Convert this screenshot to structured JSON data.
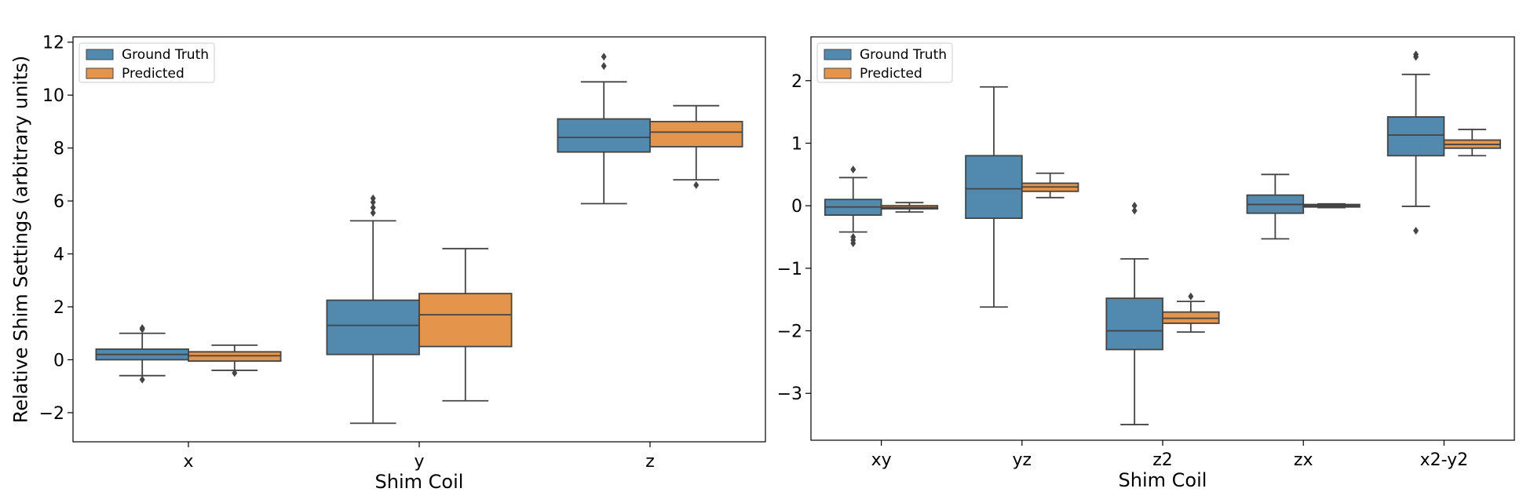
{
  "colors": {
    "ground_truth": "#3274a1",
    "predicted": "#e1812c",
    "whisker": "#444444"
  },
  "chart_data": [
    {
      "type": "box",
      "title": "",
      "xlabel": "Shim Coil",
      "ylabel": "Relative Shim Settings (arbitrary units)",
      "ylim": [
        -3.1,
        12.2
      ],
      "yticks": [
        -2,
        0,
        2,
        4,
        6,
        8,
        10,
        12
      ],
      "ytick_labels": [
        "−2",
        "0",
        "2",
        "4",
        "6",
        "8",
        "10",
        "12"
      ],
      "legend": {
        "placement": "top-left",
        "entries": [
          "Ground Truth",
          "Predicted"
        ]
      },
      "categories": [
        "x",
        "y",
        "z"
      ],
      "series": [
        {
          "name": "Ground Truth",
          "boxes": [
            {
              "whislo": -0.6,
              "q1": 0.0,
              "med": 0.2,
              "q3": 0.4,
              "whishi": 1.0,
              "fliers": [
                1.2,
                1.15,
                -0.75
              ]
            },
            {
              "whislo": -2.4,
              "q1": 0.2,
              "med": 1.3,
              "q3": 2.25,
              "whishi": 5.25,
              "fliers": [
                5.55,
                5.75,
                5.95,
                6.1
              ]
            },
            {
              "whislo": 5.9,
              "q1": 7.85,
              "med": 8.4,
              "q3": 9.1,
              "whishi": 10.5,
              "fliers": [
                11.1,
                11.45
              ]
            }
          ]
        },
        {
          "name": "Predicted",
          "boxes": [
            {
              "whislo": -0.4,
              "q1": -0.05,
              "med": 0.15,
              "q3": 0.3,
              "whishi": 0.55,
              "fliers": [
                -0.5
              ]
            },
            {
              "whislo": -1.55,
              "q1": 0.5,
              "med": 1.7,
              "q3": 2.5,
              "whishi": 4.2,
              "fliers": []
            },
            {
              "whislo": 6.8,
              "q1": 8.05,
              "med": 8.6,
              "q3": 9.0,
              "whishi": 9.6,
              "fliers": [
                6.6
              ]
            }
          ]
        }
      ]
    },
    {
      "type": "box",
      "title": "",
      "xlabel": "Shim Coil",
      "ylabel": "",
      "ylim": [
        -3.75,
        2.7
      ],
      "yticks": [
        -3,
        -2,
        -1,
        0,
        1,
        2
      ],
      "ytick_labels": [
        "−3",
        "−2",
        "−1",
        "0",
        "1",
        "2"
      ],
      "legend": {
        "placement": "top-left",
        "entries": [
          "Ground Truth",
          "Predicted"
        ]
      },
      "categories": [
        "xy",
        "yz",
        "z2",
        "zx",
        "x2-y2"
      ],
      "series": [
        {
          "name": "Ground Truth",
          "boxes": [
            {
              "whislo": -0.42,
              "q1": -0.15,
              "med": -0.02,
              "q3": 0.1,
              "whishi": 0.45,
              "fliers": [
                0.58,
                -0.5,
                -0.55,
                -0.6
              ]
            },
            {
              "whislo": -1.62,
              "q1": -0.2,
              "med": 0.27,
              "q3": 0.8,
              "whishi": 1.9,
              "fliers": []
            },
            {
              "whislo": -3.5,
              "q1": -2.3,
              "med": -2.0,
              "q3": -1.48,
              "whishi": -0.85,
              "fliers": [
                0.0,
                -0.08
              ]
            },
            {
              "whislo": -0.53,
              "q1": -0.12,
              "med": 0.02,
              "q3": 0.17,
              "whishi": 0.5,
              "fliers": []
            },
            {
              "whislo": -0.01,
              "q1": 0.8,
              "med": 1.13,
              "q3": 1.42,
              "whishi": 2.1,
              "fliers": [
                2.42,
                2.38,
                -0.4
              ]
            }
          ]
        },
        {
          "name": "Predicted",
          "boxes": [
            {
              "whislo": -0.1,
              "q1": -0.05,
              "med": -0.03,
              "q3": 0.0,
              "whishi": 0.05,
              "fliers": []
            },
            {
              "whislo": 0.13,
              "q1": 0.23,
              "med": 0.3,
              "q3": 0.36,
              "whishi": 0.52,
              "fliers": []
            },
            {
              "whislo": -2.02,
              "q1": -1.88,
              "med": -1.8,
              "q3": -1.7,
              "whishi": -1.53,
              "fliers": [
                -1.45
              ]
            },
            {
              "whislo": -0.03,
              "q1": -0.02,
              "med": 0.0,
              "q3": 0.02,
              "whishi": 0.03,
              "fliers": []
            },
            {
              "whislo": 0.8,
              "q1": 0.92,
              "med": 0.98,
              "q3": 1.05,
              "whishi": 1.22,
              "fliers": []
            }
          ]
        }
      ]
    }
  ]
}
